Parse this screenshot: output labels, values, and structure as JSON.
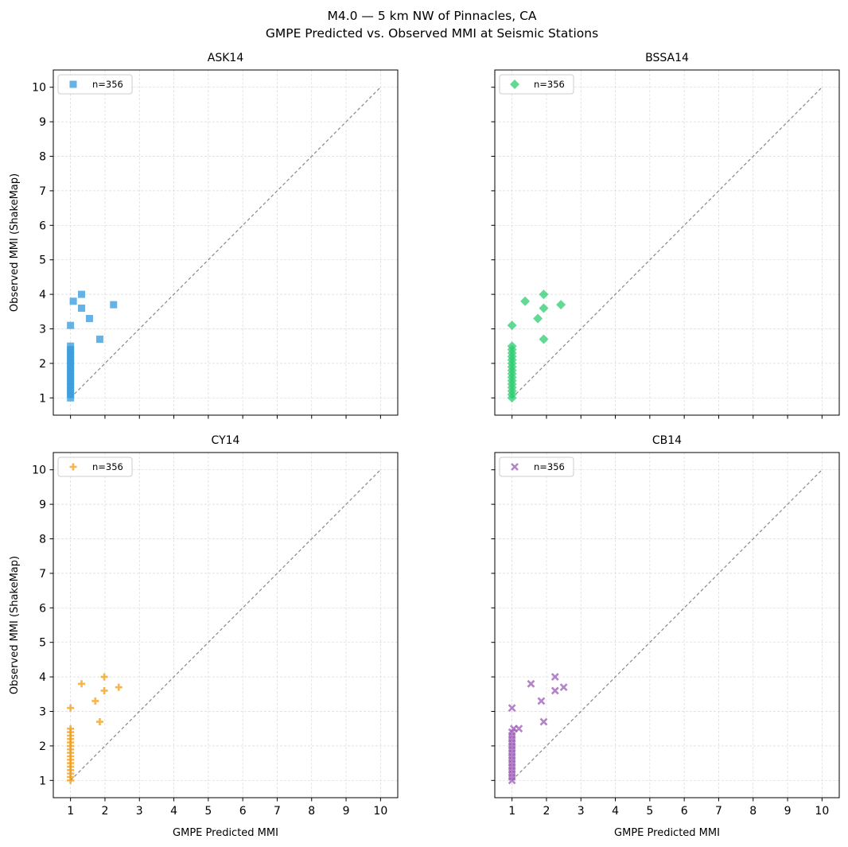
{
  "figure": {
    "title_line1": "M4.0 — 5 km NW of Pinnacles, CA",
    "title_line2": "GMPE Predicted vs. Observed MMI at Seismic Stations"
  },
  "chart_data": [
    {
      "type": "scatter",
      "title": "ASK14",
      "xlabel": "",
      "ylabel": "Observed MMI (ShakeMap)",
      "xlim": [
        0.5,
        10.5
      ],
      "ylim": [
        0.5,
        10.5
      ],
      "xticks": [
        1,
        2,
        3,
        4,
        5,
        6,
        7,
        8,
        9,
        10
      ],
      "yticks": [
        1,
        2,
        3,
        4,
        5,
        6,
        7,
        8,
        9,
        10
      ],
      "show_xticklabels": false,
      "show_yticklabels": true,
      "grid": true,
      "legend_position": "upper-left",
      "reference_line": {
        "from": [
          1,
          1
        ],
        "to": [
          10,
          10
        ],
        "style": "dashed",
        "color": "#888888"
      },
      "series": [
        {
          "name": "n=356",
          "marker": "square",
          "color": "#3498db",
          "points": [
            [
              1.08,
              3.8
            ],
            [
              1.32,
              4.0
            ],
            [
              1.32,
              3.6
            ],
            [
              1.55,
              3.3
            ],
            [
              2.25,
              3.7
            ],
            [
              1.85,
              2.7
            ],
            [
              1.0,
              3.1
            ],
            [
              1.0,
              2.5
            ],
            [
              1.0,
              2.4
            ],
            [
              1.0,
              2.3
            ],
            [
              1.0,
              2.2
            ],
            [
              1.0,
              2.1
            ],
            [
              1.0,
              2.0
            ],
            [
              1.0,
              1.9
            ],
            [
              1.0,
              1.8
            ],
            [
              1.0,
              1.7
            ],
            [
              1.0,
              1.6
            ],
            [
              1.0,
              1.5
            ],
            [
              1.0,
              1.4
            ],
            [
              1.0,
              1.3
            ],
            [
              1.0,
              1.2
            ],
            [
              1.0,
              1.1
            ],
            [
              1.0,
              1.0
            ]
          ]
        }
      ]
    },
    {
      "type": "scatter",
      "title": "BSSA14",
      "xlabel": "",
      "ylabel": "",
      "xlim": [
        0.5,
        10.5
      ],
      "ylim": [
        0.5,
        10.5
      ],
      "xticks": [
        1,
        2,
        3,
        4,
        5,
        6,
        7,
        8,
        9,
        10
      ],
      "yticks": [
        1,
        2,
        3,
        4,
        5,
        6,
        7,
        8,
        9,
        10
      ],
      "show_xticklabels": false,
      "show_yticklabels": false,
      "grid": true,
      "legend_position": "upper-left",
      "reference_line": {
        "from": [
          1,
          1
        ],
        "to": [
          10,
          10
        ],
        "style": "dashed",
        "color": "#888888"
      },
      "series": [
        {
          "name": "n=356",
          "marker": "diamond",
          "color": "#2ecc71",
          "points": [
            [
              1.38,
              3.8
            ],
            [
              1.92,
              4.0
            ],
            [
              1.92,
              3.6
            ],
            [
              1.75,
              3.3
            ],
            [
              2.42,
              3.7
            ],
            [
              1.92,
              2.7
            ],
            [
              1.0,
              3.1
            ],
            [
              1.0,
              2.5
            ],
            [
              1.0,
              2.4
            ],
            [
              1.0,
              2.3
            ],
            [
              1.0,
              2.2
            ],
            [
              1.0,
              2.1
            ],
            [
              1.0,
              2.0
            ],
            [
              1.0,
              1.9
            ],
            [
              1.0,
              1.8
            ],
            [
              1.0,
              1.7
            ],
            [
              1.0,
              1.6
            ],
            [
              1.0,
              1.5
            ],
            [
              1.0,
              1.4
            ],
            [
              1.0,
              1.3
            ],
            [
              1.0,
              1.2
            ],
            [
              1.0,
              1.1
            ],
            [
              1.0,
              1.0
            ]
          ]
        }
      ]
    },
    {
      "type": "scatter",
      "title": "CY14",
      "xlabel": "GMPE Predicted MMI",
      "ylabel": "Observed MMI (ShakeMap)",
      "xlim": [
        0.5,
        10.5
      ],
      "ylim": [
        0.5,
        10.5
      ],
      "xticks": [
        1,
        2,
        3,
        4,
        5,
        6,
        7,
        8,
        9,
        10
      ],
      "yticks": [
        1,
        2,
        3,
        4,
        5,
        6,
        7,
        8,
        9,
        10
      ],
      "show_xticklabels": true,
      "show_yticklabels": true,
      "grid": true,
      "legend_position": "upper-left",
      "reference_line": {
        "from": [
          1,
          1
        ],
        "to": [
          10,
          10
        ],
        "style": "dashed",
        "color": "#888888"
      },
      "series": [
        {
          "name": "n=356",
          "marker": "plus",
          "color": "#f39c12",
          "points": [
            [
              1.32,
              3.8
            ],
            [
              1.98,
              4.0
            ],
            [
              1.98,
              3.6
            ],
            [
              1.72,
              3.3
            ],
            [
              2.4,
              3.7
            ],
            [
              1.85,
              2.7
            ],
            [
              1.0,
              3.1
            ],
            [
              1.0,
              2.5
            ],
            [
              1.0,
              2.4
            ],
            [
              1.0,
              2.3
            ],
            [
              1.0,
              2.2
            ],
            [
              1.0,
              2.1
            ],
            [
              1.0,
              2.0
            ],
            [
              1.0,
              1.9
            ],
            [
              1.0,
              1.8
            ],
            [
              1.0,
              1.7
            ],
            [
              1.0,
              1.6
            ],
            [
              1.0,
              1.5
            ],
            [
              1.0,
              1.4
            ],
            [
              1.0,
              1.3
            ],
            [
              1.0,
              1.2
            ],
            [
              1.0,
              1.1
            ],
            [
              1.0,
              1.0
            ]
          ]
        }
      ]
    },
    {
      "type": "scatter",
      "title": "CB14",
      "xlabel": "GMPE Predicted MMI",
      "ylabel": "",
      "xlim": [
        0.5,
        10.5
      ],
      "ylim": [
        0.5,
        10.5
      ],
      "xticks": [
        1,
        2,
        3,
        4,
        5,
        6,
        7,
        8,
        9,
        10
      ],
      "yticks": [
        1,
        2,
        3,
        4,
        5,
        6,
        7,
        8,
        9,
        10
      ],
      "show_xticklabels": true,
      "show_yticklabels": false,
      "grid": true,
      "legend_position": "upper-left",
      "reference_line": {
        "from": [
          1,
          1
        ],
        "to": [
          10,
          10
        ],
        "style": "dashed",
        "color": "#888888"
      },
      "series": [
        {
          "name": "n=356",
          "marker": "x",
          "color": "#9b59b6",
          "points": [
            [
              1.55,
              3.8
            ],
            [
              2.25,
              4.0
            ],
            [
              2.25,
              3.6
            ],
            [
              1.85,
              3.3
            ],
            [
              2.5,
              3.7
            ],
            [
              1.92,
              2.7
            ],
            [
              1.0,
              3.1
            ],
            [
              1.2,
              2.5
            ],
            [
              1.05,
              2.5
            ],
            [
              1.0,
              2.4
            ],
            [
              1.0,
              2.3
            ],
            [
              1.0,
              2.2
            ],
            [
              1.0,
              2.1
            ],
            [
              1.0,
              2.0
            ],
            [
              1.0,
              1.9
            ],
            [
              1.0,
              1.8
            ],
            [
              1.0,
              1.7
            ],
            [
              1.0,
              1.6
            ],
            [
              1.0,
              1.5
            ],
            [
              1.0,
              1.4
            ],
            [
              1.0,
              1.3
            ],
            [
              1.0,
              1.2
            ],
            [
              1.0,
              1.1
            ],
            [
              1.0,
              1.0
            ]
          ]
        }
      ]
    }
  ]
}
